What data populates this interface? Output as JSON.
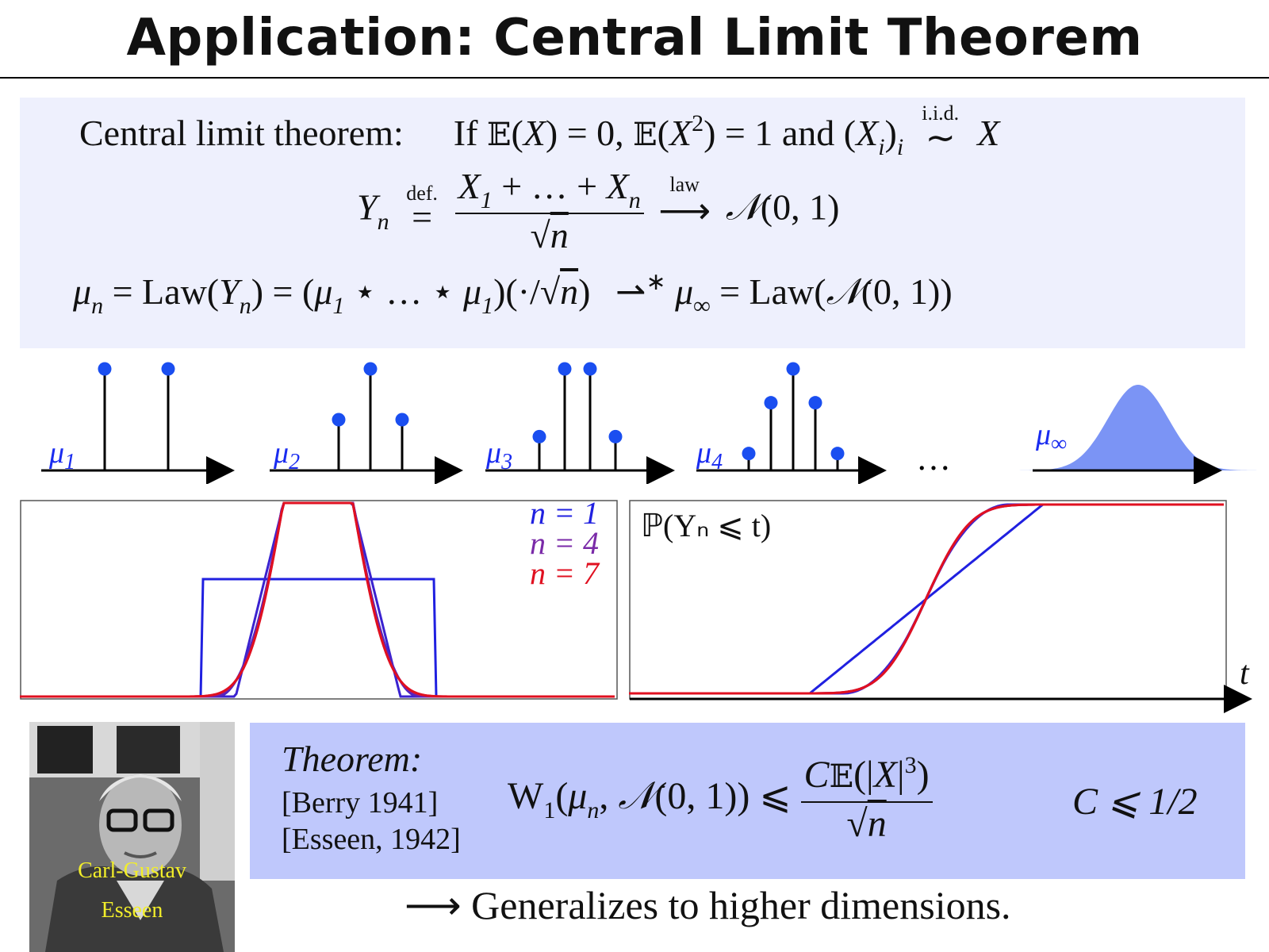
{
  "title": "Application: Central Limit Theorem",
  "clt": {
    "label": "Central limit theorem:",
    "if": "If",
    "and": "and",
    "iid": "i.i.d.",
    "def": "def.",
    "law": "law",
    "law_word": "Law"
  },
  "measures": {
    "mu1": {
      "label": "μ",
      "sub": "1",
      "atoms": [
        {
          "x": -1,
          "p": 0.5
        },
        {
          "x": 1,
          "p": 0.5
        }
      ]
    },
    "mu2": {
      "label": "μ",
      "sub": "2",
      "atoms": [
        {
          "x": -2,
          "p": 0.25
        },
        {
          "x": 0,
          "p": 0.5
        },
        {
          "x": 2,
          "p": 0.25
        }
      ]
    },
    "mu3": {
      "label": "μ",
      "sub": "3",
      "atoms": [
        {
          "x": -3,
          "p": 0.125
        },
        {
          "x": -1,
          "p": 0.375
        },
        {
          "x": 1,
          "p": 0.375
        },
        {
          "x": 3,
          "p": 0.125
        }
      ]
    },
    "mu4": {
      "label": "μ",
      "sub": "4",
      "atoms": [
        {
          "x": -4,
          "p": 0.0625
        },
        {
          "x": -2,
          "p": 0.25
        },
        {
          "x": 0,
          "p": 0.375
        },
        {
          "x": 2,
          "p": 0.25
        },
        {
          "x": 4,
          "p": 0.0625
        }
      ]
    },
    "mu_inf": {
      "label": "μ",
      "sub": "∞"
    },
    "ellipsis": "…"
  },
  "density_plot": {
    "legend": [
      {
        "label": "n = 1",
        "color": "#2020e0"
      },
      {
        "label": "n = 4",
        "color": "#7a2aa8"
      },
      {
        "label": "n = 7",
        "color": "#e01020"
      }
    ]
  },
  "cdf_plot": {
    "label": "ℙ(Yₙ ⩽ t)",
    "axis_label": "t"
  },
  "chart_data": [
    {
      "type": "line",
      "title": "",
      "series": [
        {
          "name": "n = 1"
        },
        {
          "name": "n = 4"
        },
        {
          "name": "n = 7"
        }
      ]
    },
    {
      "type": "line",
      "title": "ℙ(Yₙ ⩽ t)",
      "xlabel": "t"
    }
  ],
  "theorem": {
    "title": "Theorem:",
    "ref1": "[Berry 1941]",
    "ref2": "[Esseen, 1942]",
    "constant": "C ⩽ 1/2"
  },
  "photo": {
    "name_line1": "Carl-Gustav",
    "name_line2": "Esseen"
  },
  "generalizes": "⟶ Generalizes to higher dimensions.",
  "colors": {
    "blue": "#1a2cf0",
    "purple": "#7a2aa8",
    "red": "#e01020",
    "dot": "#1a4ef0",
    "gauss": "#7b94f5"
  }
}
